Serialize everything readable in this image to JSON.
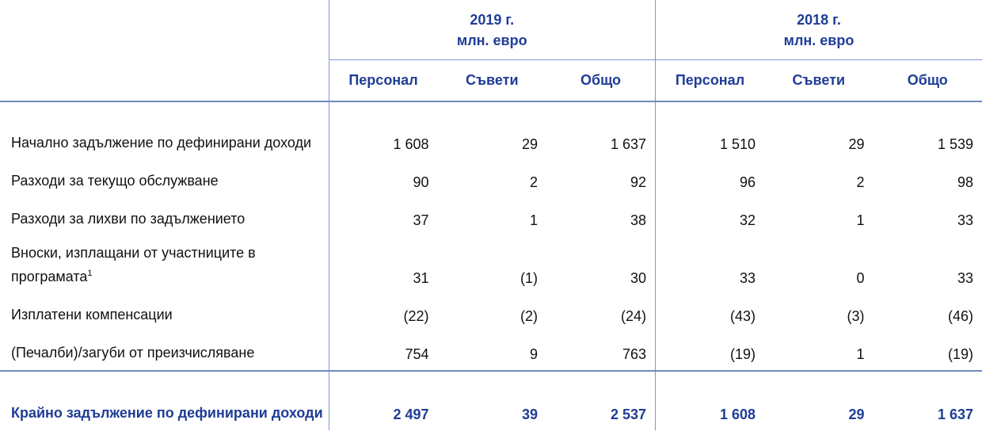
{
  "header": {
    "groups": [
      {
        "year": "2019 г.",
        "unit": "млн. евро"
      },
      {
        "year": "2018 г.",
        "unit": "млн. евро"
      }
    ],
    "columns": [
      "Персонал",
      "Съвети",
      "Общо",
      "Персонал",
      "Съвети",
      "Общо"
    ]
  },
  "table": {
    "rows": [
      {
        "label": "Начално задължение по дефинирани доходи",
        "values": [
          "1 608",
          "29",
          "1 637",
          "1 510",
          "29",
          "1 539"
        ]
      },
      {
        "label": "Разходи за текущо обслужване",
        "values": [
          "90",
          "2",
          "92",
          "96",
          "2",
          "98"
        ]
      },
      {
        "label": "Разходи за лихви по задължението",
        "values": [
          "37",
          "1",
          "38",
          "32",
          "1",
          "33"
        ]
      },
      {
        "label": "Вноски, изплащани от участниците в програмата",
        "note": "1",
        "values": [
          "31",
          "(1)",
          "30",
          "33",
          "0",
          "33"
        ]
      },
      {
        "label": "Изплатени компенсации",
        "values": [
          "(22)",
          "(2)",
          "(24)",
          "(43)",
          "(3)",
          "(46)"
        ]
      },
      {
        "label": "(Печалби)/загуби от преизчисляване",
        "values": [
          "754",
          "9",
          "763",
          "(19)",
          "1",
          "(19)"
        ]
      }
    ],
    "total": {
      "label": "Крайно задължение по дефинирани доходи",
      "values": [
        "2 497",
        "39",
        "2 537",
        "1 608",
        "29",
        "1 637"
      ]
    }
  }
}
